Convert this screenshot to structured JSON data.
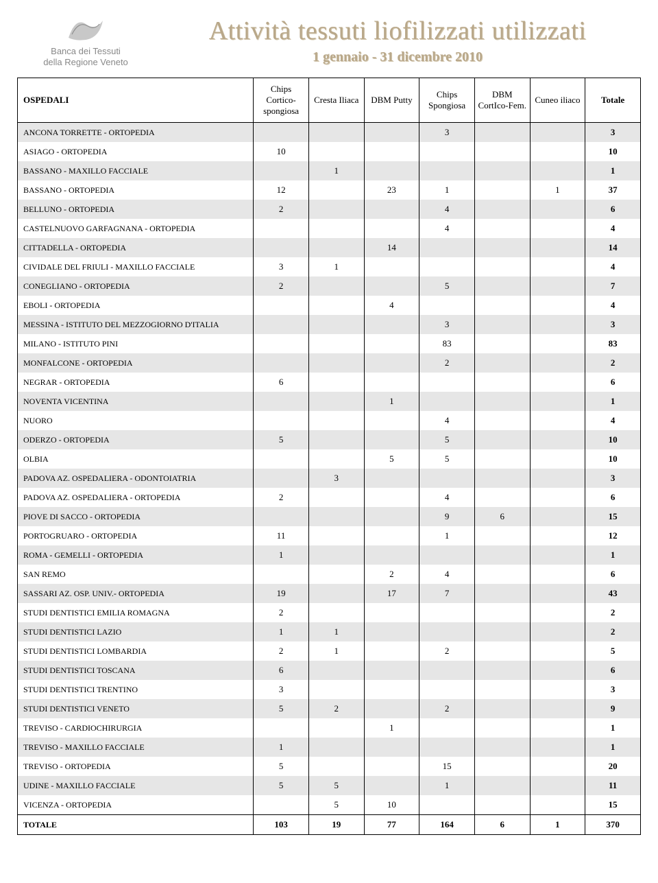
{
  "header": {
    "logo_line1": "Banca dei Tessuti",
    "logo_line2": "della Regione Veneto",
    "title": "Attività tessuti liofilizzati utilizzati",
    "subtitle": "1 gennaio - 31 dicembre 2010"
  },
  "colors": {
    "title_color": "#b9a88a",
    "logo_text_color": "#888888",
    "row_stripe": "#e6e6e6",
    "border": "#000000"
  },
  "table": {
    "columns": [
      "OSPEDALI",
      "Chips Cortico-spongiosa",
      "Cresta Iliaca",
      "DBM Putty",
      "Chips Spongiosa",
      "DBM CortIco-Fem.",
      "Cuneo iliaco",
      "Totale"
    ],
    "rows": [
      {
        "name": "ANCONA TORRETTE  - ORTOPEDIA",
        "c1": "",
        "c2": "",
        "c3": "",
        "c4": "3",
        "c5": "",
        "c6": "",
        "tot": "3"
      },
      {
        "name": "ASIAGO - ORTOPEDIA",
        "c1": "10",
        "c2": "",
        "c3": "",
        "c4": "",
        "c5": "",
        "c6": "",
        "tot": "10"
      },
      {
        "name": "BASSANO - MAXILLO FACCIALE",
        "c1": "",
        "c2": "1",
        "c3": "",
        "c4": "",
        "c5": "",
        "c6": "",
        "tot": "1"
      },
      {
        "name": "BASSANO - ORTOPEDIA",
        "c1": "12",
        "c2": "",
        "c3": "23",
        "c4": "1",
        "c5": "",
        "c6": "1",
        "tot": "37"
      },
      {
        "name": "BELLUNO - ORTOPEDIA",
        "c1": "2",
        "c2": "",
        "c3": "",
        "c4": "4",
        "c5": "",
        "c6": "",
        "tot": "6"
      },
      {
        "name": "CASTELNUOVO GARFAGNANA - ORTOPEDIA",
        "c1": "",
        "c2": "",
        "c3": "",
        "c4": "4",
        "c5": "",
        "c6": "",
        "tot": "4"
      },
      {
        "name": "CITTADELLA - ORTOPEDIA",
        "c1": "",
        "c2": "",
        "c3": "14",
        "c4": "",
        "c5": "",
        "c6": "",
        "tot": "14"
      },
      {
        "name": "CIVIDALE DEL FRIULI - MAXILLO FACCIALE",
        "c1": "3",
        "c2": "1",
        "c3": "",
        "c4": "",
        "c5": "",
        "c6": "",
        "tot": "4"
      },
      {
        "name": "CONEGLIANO - ORTOPEDIA",
        "c1": "2",
        "c2": "",
        "c3": "",
        "c4": "5",
        "c5": "",
        "c6": "",
        "tot": "7"
      },
      {
        "name": "EBOLI - ORTOPEDIA",
        "c1": "",
        "c2": "",
        "c3": "4",
        "c4": "",
        "c5": "",
        "c6": "",
        "tot": "4"
      },
      {
        "name": "MESSINA - ISTITUTO DEL MEZZOGIORNO D'ITALIA",
        "c1": "",
        "c2": "",
        "c3": "",
        "c4": "3",
        "c5": "",
        "c6": "",
        "tot": "3"
      },
      {
        "name": "MILANO - ISTITUTO PINI",
        "c1": "",
        "c2": "",
        "c3": "",
        "c4": "83",
        "c5": "",
        "c6": "",
        "tot": "83"
      },
      {
        "name": "MONFALCONE - ORTOPEDIA",
        "c1": "",
        "c2": "",
        "c3": "",
        "c4": "2",
        "c5": "",
        "c6": "",
        "tot": "2"
      },
      {
        "name": "NEGRAR - ORTOPEDIA",
        "c1": "6",
        "c2": "",
        "c3": "",
        "c4": "",
        "c5": "",
        "c6": "",
        "tot": "6"
      },
      {
        "name": "NOVENTA VICENTINA",
        "c1": "",
        "c2": "",
        "c3": "1",
        "c4": "",
        "c5": "",
        "c6": "",
        "tot": "1"
      },
      {
        "name": "NUORO",
        "c1": "",
        "c2": "",
        "c3": "",
        "c4": "4",
        "c5": "",
        "c6": "",
        "tot": "4"
      },
      {
        "name": "ODERZO - ORTOPEDIA",
        "c1": "5",
        "c2": "",
        "c3": "",
        "c4": "5",
        "c5": "",
        "c6": "",
        "tot": "10"
      },
      {
        "name": "OLBIA",
        "c1": "",
        "c2": "",
        "c3": "5",
        "c4": "5",
        "c5": "",
        "c6": "",
        "tot": "10"
      },
      {
        "name": "PADOVA AZ. OSPEDALIERA - ODONTOIATRIA",
        "c1": "",
        "c2": "3",
        "c3": "",
        "c4": "",
        "c5": "",
        "c6": "",
        "tot": "3"
      },
      {
        "name": "PADOVA AZ. OSPEDALIERA - ORTOPEDIA",
        "c1": "2",
        "c2": "",
        "c3": "",
        "c4": "4",
        "c5": "",
        "c6": "",
        "tot": "6"
      },
      {
        "name": "PIOVE DI SACCO - ORTOPEDIA",
        "c1": "",
        "c2": "",
        "c3": "",
        "c4": "9",
        "c5": "6",
        "c6": "",
        "tot": "15"
      },
      {
        "name": "PORTOGRUARO - ORTOPEDIA",
        "c1": "11",
        "c2": "",
        "c3": "",
        "c4": "1",
        "c5": "",
        "c6": "",
        "tot": "12"
      },
      {
        "name": "ROMA - GEMELLI - ORTOPEDIA",
        "c1": "1",
        "c2": "",
        "c3": "",
        "c4": "",
        "c5": "",
        "c6": "",
        "tot": "1"
      },
      {
        "name": "SAN REMO",
        "c1": "",
        "c2": "",
        "c3": "2",
        "c4": "4",
        "c5": "",
        "c6": "",
        "tot": "6"
      },
      {
        "name": "SASSARI AZ. OSP. UNIV.- ORTOPEDIA",
        "c1": "19",
        "c2": "",
        "c3": "17",
        "c4": "7",
        "c5": "",
        "c6": "",
        "tot": "43"
      },
      {
        "name": "STUDI DENTISTICI EMILIA ROMAGNA",
        "c1": "2",
        "c2": "",
        "c3": "",
        "c4": "",
        "c5": "",
        "c6": "",
        "tot": "2"
      },
      {
        "name": "STUDI DENTISTICI LAZIO",
        "c1": "1",
        "c2": "1",
        "c3": "",
        "c4": "",
        "c5": "",
        "c6": "",
        "tot": "2"
      },
      {
        "name": "STUDI DENTISTICI LOMBARDIA",
        "c1": "2",
        "c2": "1",
        "c3": "",
        "c4": "2",
        "c5": "",
        "c6": "",
        "tot": "5"
      },
      {
        "name": "STUDI DENTISTICI TOSCANA",
        "c1": "6",
        "c2": "",
        "c3": "",
        "c4": "",
        "c5": "",
        "c6": "",
        "tot": "6"
      },
      {
        "name": "STUDI DENTISTICI TRENTINO",
        "c1": "3",
        "c2": "",
        "c3": "",
        "c4": "",
        "c5": "",
        "c6": "",
        "tot": "3"
      },
      {
        "name": "STUDI DENTISTICI VENETO",
        "c1": "5",
        "c2": "2",
        "c3": "",
        "c4": "2",
        "c5": "",
        "c6": "",
        "tot": "9"
      },
      {
        "name": "TREVISO - CARDIOCHIRURGIA",
        "c1": "",
        "c2": "",
        "c3": "1",
        "c4": "",
        "c5": "",
        "c6": "",
        "tot": "1"
      },
      {
        "name": "TREVISO - MAXILLO FACCIALE",
        "c1": "1",
        "c2": "",
        "c3": "",
        "c4": "",
        "c5": "",
        "c6": "",
        "tot": "1"
      },
      {
        "name": "TREVISO - ORTOPEDIA",
        "c1": "5",
        "c2": "",
        "c3": "",
        "c4": "15",
        "c5": "",
        "c6": "",
        "tot": "20"
      },
      {
        "name": "UDINE - MAXILLO FACCIALE",
        "c1": "5",
        "c2": "5",
        "c3": "",
        "c4": "1",
        "c5": "",
        "c6": "",
        "tot": "11"
      },
      {
        "name": "VICENZA - ORTOPEDIA",
        "c1": "",
        "c2": "5",
        "c3": "10",
        "c4": "",
        "c5": "",
        "c6": "",
        "tot": "15"
      }
    ],
    "total": {
      "name": "TOTALE",
      "c1": "103",
      "c2": "19",
      "c3": "77",
      "c4": "164",
      "c5": "6",
      "c6": "1",
      "tot": "370"
    }
  }
}
